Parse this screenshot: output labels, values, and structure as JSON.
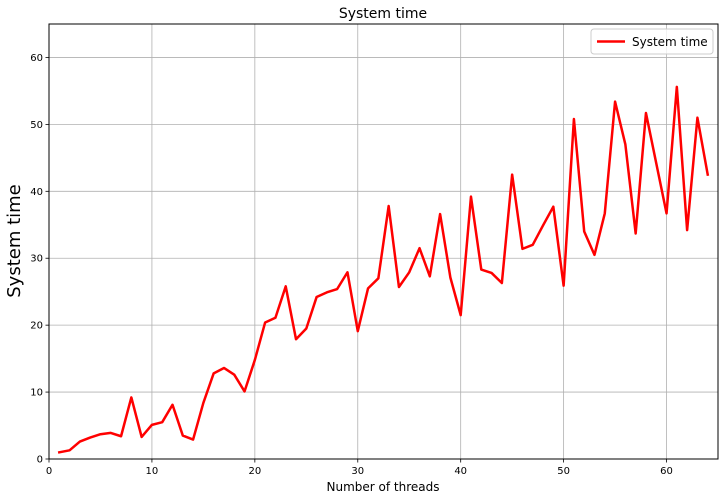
{
  "chart_data": {
    "type": "line",
    "title": "System time",
    "xlabel": "Number of threads",
    "ylabel": "System time",
    "xlim": [
      0,
      65
    ],
    "ylim": [
      0,
      65
    ],
    "xticks": [
      0,
      10,
      20,
      30,
      40,
      50,
      60
    ],
    "yticks": [
      0,
      10,
      20,
      30,
      40,
      50,
      60
    ],
    "grid": true,
    "legend_position": "top-right",
    "series": [
      {
        "name": "System time",
        "color": "#ff0000",
        "x": [
          1,
          2,
          3,
          4,
          5,
          6,
          7,
          8,
          9,
          10,
          11,
          12,
          13,
          14,
          15,
          16,
          17,
          18,
          19,
          20,
          21,
          22,
          23,
          24,
          25,
          26,
          27,
          28,
          29,
          30,
          31,
          32,
          33,
          34,
          35,
          36,
          37,
          38,
          39,
          40,
          41,
          42,
          43,
          44,
          45,
          46,
          47,
          48,
          49,
          50,
          51,
          52,
          53,
          54,
          55,
          56,
          57,
          58,
          59,
          60,
          61,
          62,
          63,
          64
        ],
        "y": [
          1.0,
          1.3,
          2.6,
          3.2,
          3.7,
          3.9,
          3.4,
          9.2,
          3.3,
          5.1,
          5.5,
          8.1,
          3.5,
          2.9,
          8.4,
          12.8,
          13.6,
          12.6,
          10.1,
          14.8,
          20.4,
          21.1,
          25.8,
          17.9,
          19.5,
          24.2,
          24.9,
          25.4,
          27.9,
          19.1,
          25.5,
          27.0,
          37.8,
          25.7,
          27.9,
          31.5,
          27.3,
          36.6,
          27.1,
          21.5,
          39.2,
          28.3,
          27.8,
          26.3,
          42.5,
          31.4,
          32.0,
          34.9,
          37.7,
          25.9,
          50.8,
          34.0,
          30.5,
          36.7,
          53.4,
          47.0,
          33.7,
          51.7,
          44.2,
          36.7,
          55.6,
          34.2,
          51.0,
          42.5
        ]
      }
    ]
  }
}
